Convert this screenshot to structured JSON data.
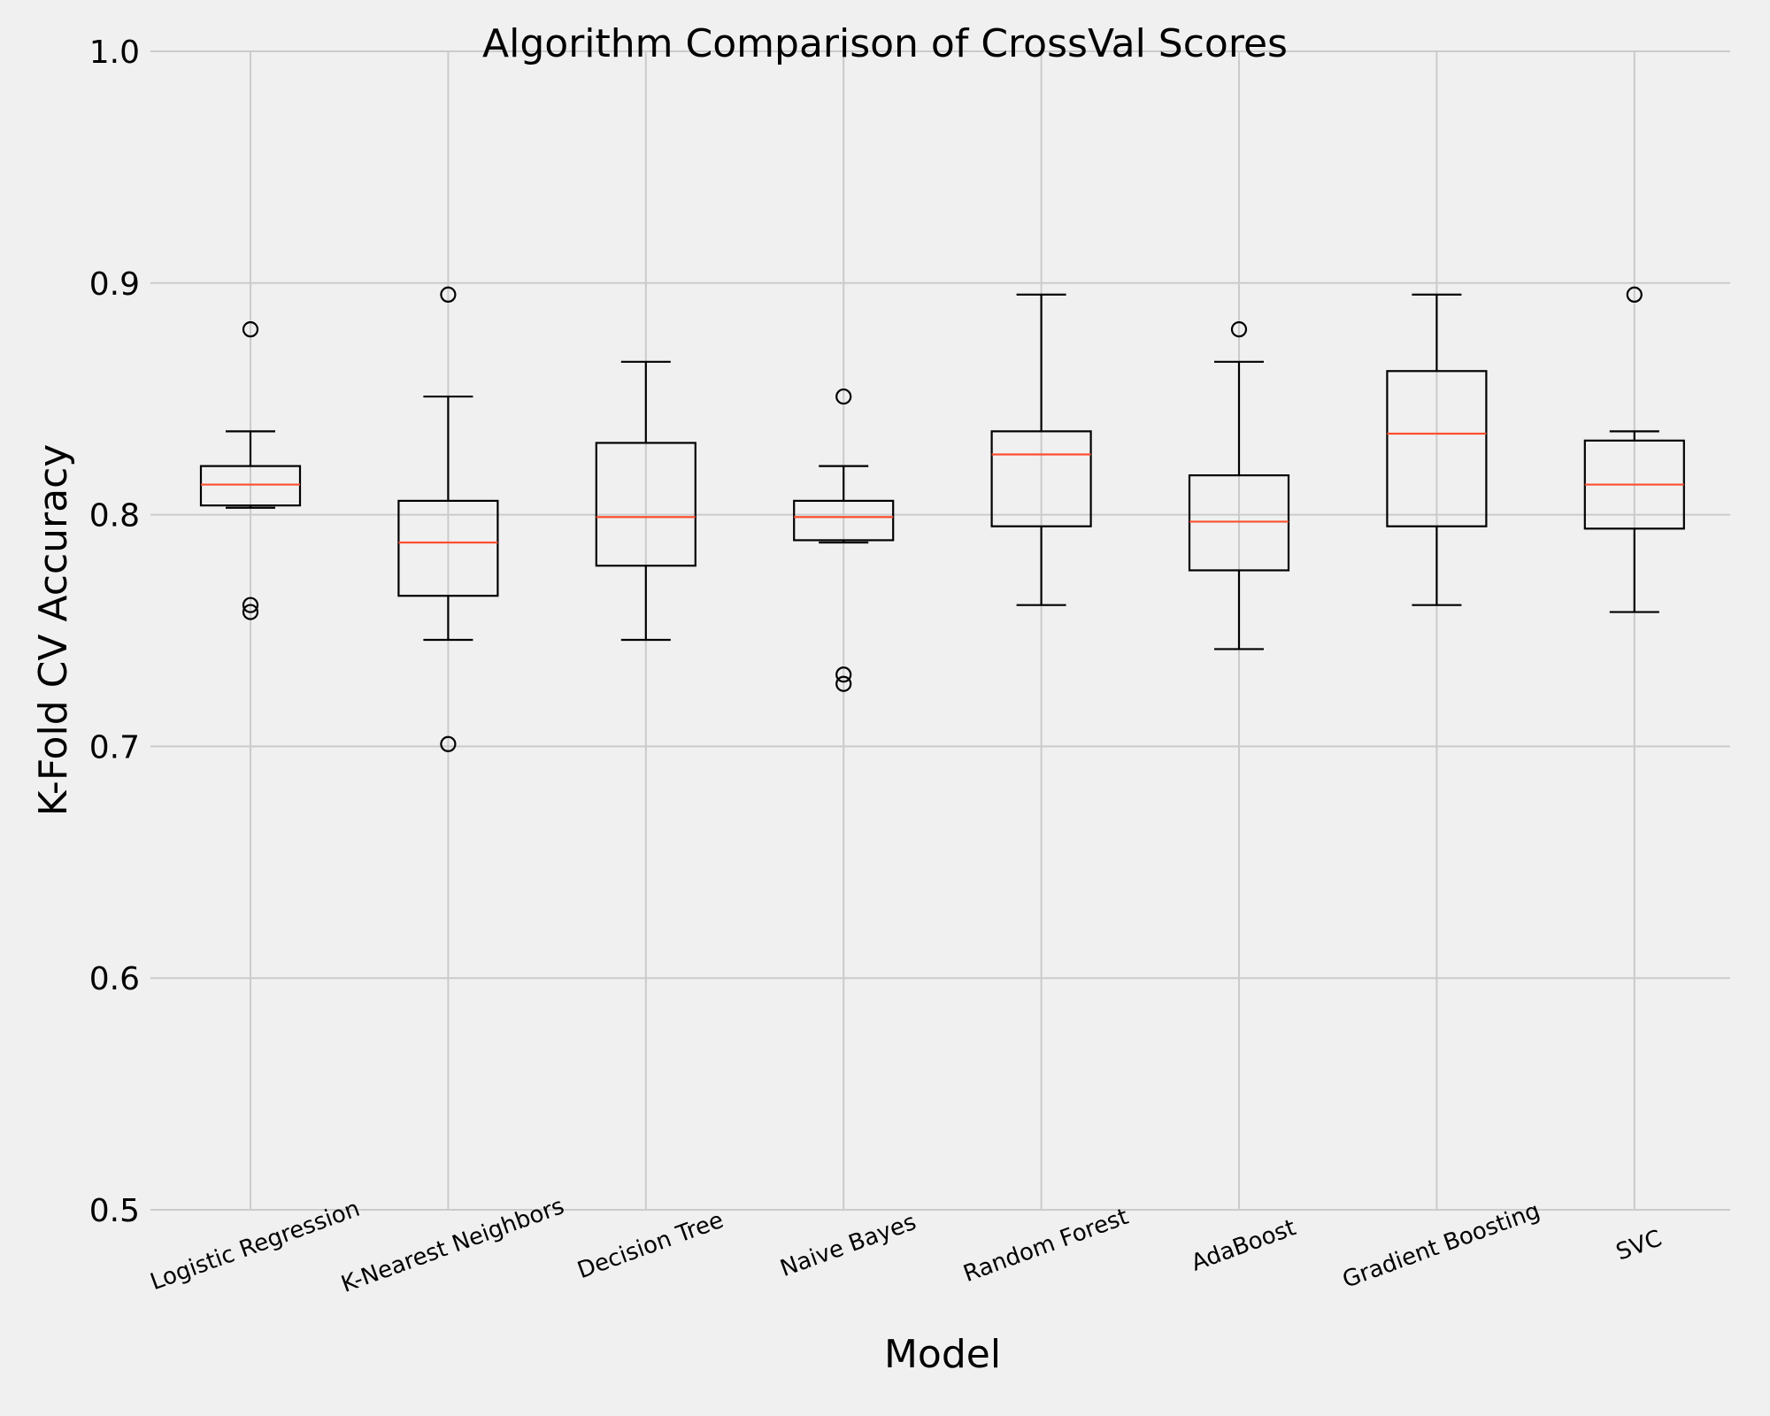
{
  "chart_data": {
    "type": "box",
    "title": "Algorithm Comparison of CrossVal Scores",
    "xlabel": "Model",
    "ylabel": "K-Fold CV Accuracy",
    "ylim": [
      0.5,
      1.0
    ],
    "yticks": [
      "0.5",
      "0.6",
      "0.7",
      "0.8",
      "0.9",
      "1.0"
    ],
    "ytick_values": [
      0.5,
      0.6,
      0.7,
      0.8,
      0.9,
      1.0
    ],
    "grid": true,
    "colors": {
      "background": "#f0f0f0",
      "grid": "#cbcbcb",
      "box": "#000000",
      "median": "#fc4f30"
    },
    "categories": [
      "Logistic Regression",
      "K-Nearest Neighbors",
      "Decision Tree",
      "Naive Bayes",
      "Random Forest",
      "AdaBoost",
      "Gradient Boosting",
      "SVC"
    ],
    "boxes": [
      {
        "name": "Logistic Regression",
        "whisker_low": 0.803,
        "q1": 0.804,
        "median": 0.813,
        "q3": 0.821,
        "whisker_high": 0.836,
        "outliers": [
          0.88,
          0.761,
          0.758
        ]
      },
      {
        "name": "K-Nearest Neighbors",
        "whisker_low": 0.746,
        "q1": 0.765,
        "median": 0.788,
        "q3": 0.806,
        "whisker_high": 0.851,
        "outliers": [
          0.895,
          0.701
        ]
      },
      {
        "name": "Decision Tree",
        "whisker_low": 0.746,
        "q1": 0.778,
        "median": 0.799,
        "q3": 0.831,
        "whisker_high": 0.866,
        "outliers": []
      },
      {
        "name": "Naive Bayes",
        "whisker_low": 0.788,
        "q1": 0.789,
        "median": 0.799,
        "q3": 0.806,
        "whisker_high": 0.821,
        "outliers": [
          0.851,
          0.731,
          0.727
        ]
      },
      {
        "name": "Random Forest",
        "whisker_low": 0.761,
        "q1": 0.795,
        "median": 0.826,
        "q3": 0.836,
        "whisker_high": 0.895,
        "outliers": []
      },
      {
        "name": "AdaBoost",
        "whisker_low": 0.742,
        "q1": 0.776,
        "median": 0.797,
        "q3": 0.817,
        "whisker_high": 0.866,
        "outliers": [
          0.88
        ]
      },
      {
        "name": "Gradient Boosting",
        "whisker_low": 0.761,
        "q1": 0.795,
        "median": 0.835,
        "q3": 0.862,
        "whisker_high": 0.895,
        "outliers": []
      },
      {
        "name": "SVC",
        "whisker_low": 0.758,
        "q1": 0.794,
        "median": 0.813,
        "q3": 0.832,
        "whisker_high": 0.836,
        "outliers": [
          0.895
        ]
      }
    ]
  }
}
